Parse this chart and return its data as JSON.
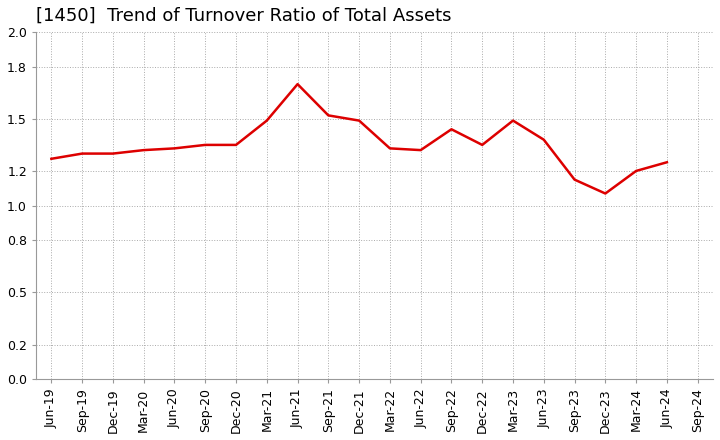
{
  "title": "[1450]  Trend of Turnover Ratio of Total Assets",
  "x_labels": [
    "Jun-19",
    "Sep-19",
    "Dec-19",
    "Mar-20",
    "Jun-20",
    "Sep-20",
    "Dec-20",
    "Mar-21",
    "Jun-21",
    "Sep-21",
    "Dec-21",
    "Mar-22",
    "Jun-22",
    "Sep-22",
    "Dec-22",
    "Mar-23",
    "Jun-23",
    "Sep-23",
    "Dec-23",
    "Mar-24",
    "Jun-24",
    "Sep-24"
  ],
  "values": [
    1.27,
    1.3,
    1.3,
    1.32,
    1.33,
    1.35,
    1.35,
    1.49,
    1.7,
    1.52,
    1.49,
    1.33,
    1.32,
    1.44,
    1.35,
    1.49,
    1.38,
    1.15,
    1.07,
    1.2,
    1.25,
    null
  ],
  "line_color": "#dd0000",
  "background_color": "#ffffff",
  "grid_color": "#aaaaaa",
  "ylim": [
    0.0,
    2.0
  ],
  "yticks": [
    0.0,
    0.2,
    0.5,
    0.8,
    1.0,
    1.2,
    1.5,
    1.8,
    2.0
  ],
  "title_fontsize": 13,
  "tick_fontsize": 9,
  "line_width": 1.8
}
